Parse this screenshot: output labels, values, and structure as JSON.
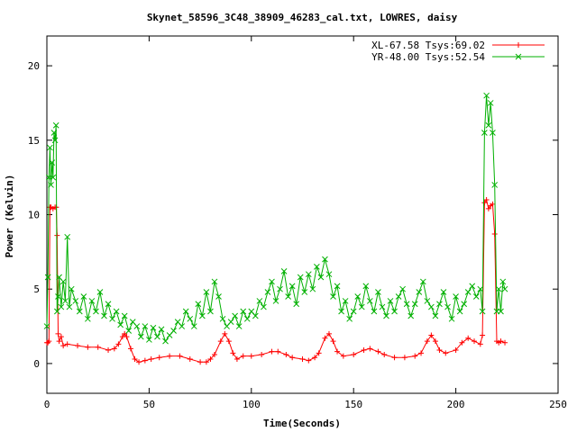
{
  "chart_data": {
    "type": "line",
    "title": "Skynet_58596_3C48_38909_46283_cal.txt, LOWRES, daisy",
    "xlabel": "Time(Seconds)",
    "ylabel": "Power (Kelvin)",
    "xlim": [
      0,
      250
    ],
    "ylim": [
      -2,
      22
    ],
    "xticks": [
      0,
      50,
      100,
      150,
      200,
      250
    ],
    "yticks": [
      0,
      5,
      10,
      15,
      20
    ],
    "grid": false,
    "legend_position": "top-right",
    "series": [
      {
        "name": "XL-67.58 Tsys:69.02",
        "color": "#ff0000",
        "marker": "plus",
        "points": [
          [
            0,
            1.4
          ],
          [
            0.5,
            1.4
          ],
          [
            1,
            1.5
          ],
          [
            1.5,
            10.5
          ],
          [
            2,
            10.5
          ],
          [
            3,
            10.4
          ],
          [
            4,
            10.5
          ],
          [
            4.6,
            10.5
          ],
          [
            5,
            8.6
          ],
          [
            5.5,
            2.0
          ],
          [
            6,
            1.5
          ],
          [
            7,
            1.8
          ],
          [
            8,
            1.2
          ],
          [
            10,
            1.3
          ],
          [
            15,
            1.2
          ],
          [
            20,
            1.1
          ],
          [
            25,
            1.1
          ],
          [
            30,
            0.9
          ],
          [
            33,
            1.0
          ],
          [
            35,
            1.3
          ],
          [
            37,
            1.8
          ],
          [
            38,
            2.0
          ],
          [
            39,
            1.8
          ],
          [
            41,
            1.0
          ],
          [
            43,
            0.3
          ],
          [
            45,
            0.1
          ],
          [
            48,
            0.2
          ],
          [
            51,
            0.3
          ],
          [
            55,
            0.4
          ],
          [
            60,
            0.5
          ],
          [
            65,
            0.5
          ],
          [
            70,
            0.3
          ],
          [
            75,
            0.1
          ],
          [
            78,
            0.1
          ],
          [
            80,
            0.3
          ],
          [
            82,
            0.6
          ],
          [
            85,
            1.5
          ],
          [
            87,
            2.0
          ],
          [
            89,
            1.5
          ],
          [
            91,
            0.7
          ],
          [
            93,
            0.3
          ],
          [
            96,
            0.5
          ],
          [
            100,
            0.5
          ],
          [
            105,
            0.6
          ],
          [
            110,
            0.8
          ],
          [
            113,
            0.8
          ],
          [
            117,
            0.6
          ],
          [
            120,
            0.4
          ],
          [
            125,
            0.3
          ],
          [
            128,
            0.2
          ],
          [
            131,
            0.4
          ],
          [
            133,
            0.7
          ],
          [
            136,
            1.7
          ],
          [
            138,
            2.0
          ],
          [
            140,
            1.5
          ],
          [
            142,
            0.8
          ],
          [
            145,
            0.5
          ],
          [
            150,
            0.6
          ],
          [
            155,
            0.9
          ],
          [
            158,
            1.0
          ],
          [
            162,
            0.8
          ],
          [
            165,
            0.6
          ],
          [
            170,
            0.4
          ],
          [
            175,
            0.4
          ],
          [
            180,
            0.5
          ],
          [
            183,
            0.7
          ],
          [
            186,
            1.5
          ],
          [
            188,
            1.9
          ],
          [
            190,
            1.5
          ],
          [
            192,
            0.9
          ],
          [
            195,
            0.7
          ],
          [
            200,
            0.9
          ],
          [
            203,
            1.4
          ],
          [
            206,
            1.7
          ],
          [
            209,
            1.5
          ],
          [
            212,
            1.3
          ],
          [
            213,
            1.9
          ],
          [
            214,
            10.8
          ],
          [
            215,
            11.0
          ],
          [
            216,
            10.4
          ],
          [
            217,
            10.6
          ],
          [
            218,
            10.7
          ],
          [
            219,
            8.7
          ],
          [
            220,
            1.5
          ],
          [
            221,
            1.4
          ],
          [
            222,
            1.5
          ],
          [
            224,
            1.4
          ]
        ]
      },
      {
        "name": "YR-48.00 Tsys:52.54",
        "color": "#00b000",
        "marker": "x",
        "points": [
          [
            0,
            2.5
          ],
          [
            0.5,
            5.8
          ],
          [
            1,
            12.5
          ],
          [
            1.5,
            14.5
          ],
          [
            2,
            12.0
          ],
          [
            2.5,
            13.5
          ],
          [
            3,
            12.5
          ],
          [
            3.5,
            15.5
          ],
          [
            4,
            15.0
          ],
          [
            4.5,
            16.0
          ],
          [
            5,
            3.5
          ],
          [
            5.5,
            4.5
          ],
          [
            6,
            5.8
          ],
          [
            7,
            3.8
          ],
          [
            8,
            5.5
          ],
          [
            9,
            4.2
          ],
          [
            10,
            8.5
          ],
          [
            11,
            3.8
          ],
          [
            12,
            5.0
          ],
          [
            14,
            4.2
          ],
          [
            16,
            3.5
          ],
          [
            18,
            4.5
          ],
          [
            20,
            3.0
          ],
          [
            22,
            4.2
          ],
          [
            24,
            3.5
          ],
          [
            26,
            4.8
          ],
          [
            28,
            3.2
          ],
          [
            30,
            4.0
          ],
          [
            32,
            3.0
          ],
          [
            34,
            3.5
          ],
          [
            36,
            2.6
          ],
          [
            38,
            3.2
          ],
          [
            40,
            2.2
          ],
          [
            42,
            2.8
          ],
          [
            44,
            2.5
          ],
          [
            46,
            1.8
          ],
          [
            48,
            2.5
          ],
          [
            50,
            1.6
          ],
          [
            52,
            2.4
          ],
          [
            54,
            1.8
          ],
          [
            56,
            2.3
          ],
          [
            58,
            1.5
          ],
          [
            60,
            1.9
          ],
          [
            62,
            2.2
          ],
          [
            64,
            2.8
          ],
          [
            66,
            2.5
          ],
          [
            68,
            3.5
          ],
          [
            70,
            3.0
          ],
          [
            72,
            2.5
          ],
          [
            74,
            4.0
          ],
          [
            76,
            3.2
          ],
          [
            78,
            4.8
          ],
          [
            80,
            3.5
          ],
          [
            82,
            5.5
          ],
          [
            84,
            4.5
          ],
          [
            86,
            3.0
          ],
          [
            88,
            2.5
          ],
          [
            90,
            2.8
          ],
          [
            92,
            3.2
          ],
          [
            94,
            2.5
          ],
          [
            96,
            3.5
          ],
          [
            98,
            3.0
          ],
          [
            100,
            3.5
          ],
          [
            102,
            3.2
          ],
          [
            104,
            4.2
          ],
          [
            106,
            3.8
          ],
          [
            108,
            4.8
          ],
          [
            110,
            5.5
          ],
          [
            112,
            4.2
          ],
          [
            114,
            5.0
          ],
          [
            116,
            6.2
          ],
          [
            118,
            4.5
          ],
          [
            120,
            5.2
          ],
          [
            122,
            4.0
          ],
          [
            124,
            5.8
          ],
          [
            126,
            4.8
          ],
          [
            128,
            6.0
          ],
          [
            130,
            5.0
          ],
          [
            132,
            6.5
          ],
          [
            134,
            5.8
          ],
          [
            136,
            7.0
          ],
          [
            138,
            6.0
          ],
          [
            140,
            4.5
          ],
          [
            142,
            5.2
          ],
          [
            144,
            3.5
          ],
          [
            146,
            4.2
          ],
          [
            148,
            3.0
          ],
          [
            150,
            3.5
          ],
          [
            152,
            4.5
          ],
          [
            154,
            3.8
          ],
          [
            156,
            5.2
          ],
          [
            158,
            4.2
          ],
          [
            160,
            3.5
          ],
          [
            162,
            4.8
          ],
          [
            164,
            3.8
          ],
          [
            166,
            3.2
          ],
          [
            168,
            4.2
          ],
          [
            170,
            3.5
          ],
          [
            172,
            4.5
          ],
          [
            174,
            5.0
          ],
          [
            176,
            4.0
          ],
          [
            178,
            3.2
          ],
          [
            180,
            4.0
          ],
          [
            182,
            4.8
          ],
          [
            184,
            5.5
          ],
          [
            186,
            4.2
          ],
          [
            188,
            3.8
          ],
          [
            190,
            3.2
          ],
          [
            192,
            4.0
          ],
          [
            194,
            4.8
          ],
          [
            196,
            3.8
          ],
          [
            198,
            3.0
          ],
          [
            200,
            4.5
          ],
          [
            202,
            3.5
          ],
          [
            204,
            4.0
          ],
          [
            206,
            4.8
          ],
          [
            208,
            5.2
          ],
          [
            210,
            4.5
          ],
          [
            212,
            5.0
          ],
          [
            213,
            3.5
          ],
          [
            214,
            15.5
          ],
          [
            215,
            18.0
          ],
          [
            216,
            16.0
          ],
          [
            217,
            17.5
          ],
          [
            218,
            15.5
          ],
          [
            219,
            12.0
          ],
          [
            220,
            3.5
          ],
          [
            221,
            5.0
          ],
          [
            222,
            3.5
          ],
          [
            223,
            5.5
          ],
          [
            224,
            5.0
          ]
        ]
      }
    ]
  }
}
